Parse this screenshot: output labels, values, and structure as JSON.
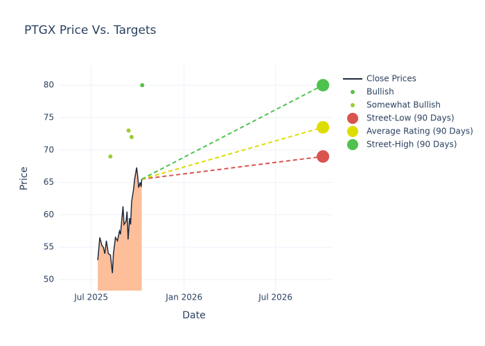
{
  "chart_data": {
    "type": "line",
    "title": "PTGX Price Vs. Targets",
    "x_label": "Date",
    "y_label": "Price",
    "xlim": [
      "2025-04-28",
      "2026-10-22"
    ],
    "xticks": [
      {
        "value": "2025-07-01",
        "label": "Jul 2025"
      },
      {
        "value": "2026-01-01",
        "label": "Jan 2026"
      },
      {
        "value": "2026-07-01",
        "label": "Jul 2026"
      }
    ],
    "ylim": [
      48.3,
      83
    ],
    "yticks": [
      50,
      55,
      60,
      65,
      70,
      75,
      80
    ],
    "grid": true,
    "legend": "right",
    "series": [
      {
        "name": "Close Prices",
        "mode": "lines",
        "color": "#1f2a3c",
        "fill_color": "#fcbf9a",
        "x": [
          "2025-07-14",
          "2025-07-18",
          "2025-07-22",
          "2025-07-25",
          "2025-07-28",
          "2025-07-31",
          "2025-08-04",
          "2025-08-08",
          "2025-08-12",
          "2025-08-14",
          "2025-08-18",
          "2025-08-22",
          "2025-08-26",
          "2025-08-28",
          "2025-09-02",
          "2025-09-04",
          "2025-09-08",
          "2025-09-10",
          "2025-09-12",
          "2025-09-15",
          "2025-09-17",
          "2025-09-19",
          "2025-09-23",
          "2025-09-25",
          "2025-09-29",
          "2025-10-01",
          "2025-10-03",
          "2025-10-06",
          "2025-10-08",
          "2025-10-09"
        ],
        "values": [
          53,
          56.5,
          55.3,
          55,
          54,
          56,
          54,
          53.8,
          51,
          54,
          56.5,
          56,
          57.5,
          57,
          61.3,
          58.5,
          59,
          60.5,
          56.2,
          59.5,
          58.5,
          62,
          64,
          65.5,
          67.3,
          66,
          64.2,
          65,
          64.3,
          65.5
        ]
      },
      {
        "name": "Bullish",
        "mode": "markers",
        "color": "#5bbf4a",
        "marker_size": 3,
        "x": [
          "2025-10-10"
        ],
        "values": [
          80
        ]
      },
      {
        "name": "Somewhat Bullish",
        "mode": "markers",
        "color": "#9acd32",
        "marker_size": 3,
        "x": [
          "2025-08-08",
          "2025-09-13",
          "2025-09-19"
        ],
        "values": [
          69,
          73,
          72
        ]
      },
      {
        "name": "Street-Low (90 Days)",
        "mode": "target",
        "color": "#d9534f",
        "marker_size": 9,
        "x": [
          "2026-10-03"
        ],
        "values": [
          69
        ]
      },
      {
        "name": "Average Rating (90 Days)",
        "mode": "target",
        "color": "#dddd00",
        "marker_size": 9,
        "x": [
          "2026-10-03"
        ],
        "values": [
          73.5
        ]
      },
      {
        "name": "Street-High (90 Days)",
        "mode": "target",
        "color": "#4fc14f",
        "marker_size": 9,
        "x": [
          "2026-10-03"
        ],
        "values": [
          80
        ]
      }
    ]
  }
}
